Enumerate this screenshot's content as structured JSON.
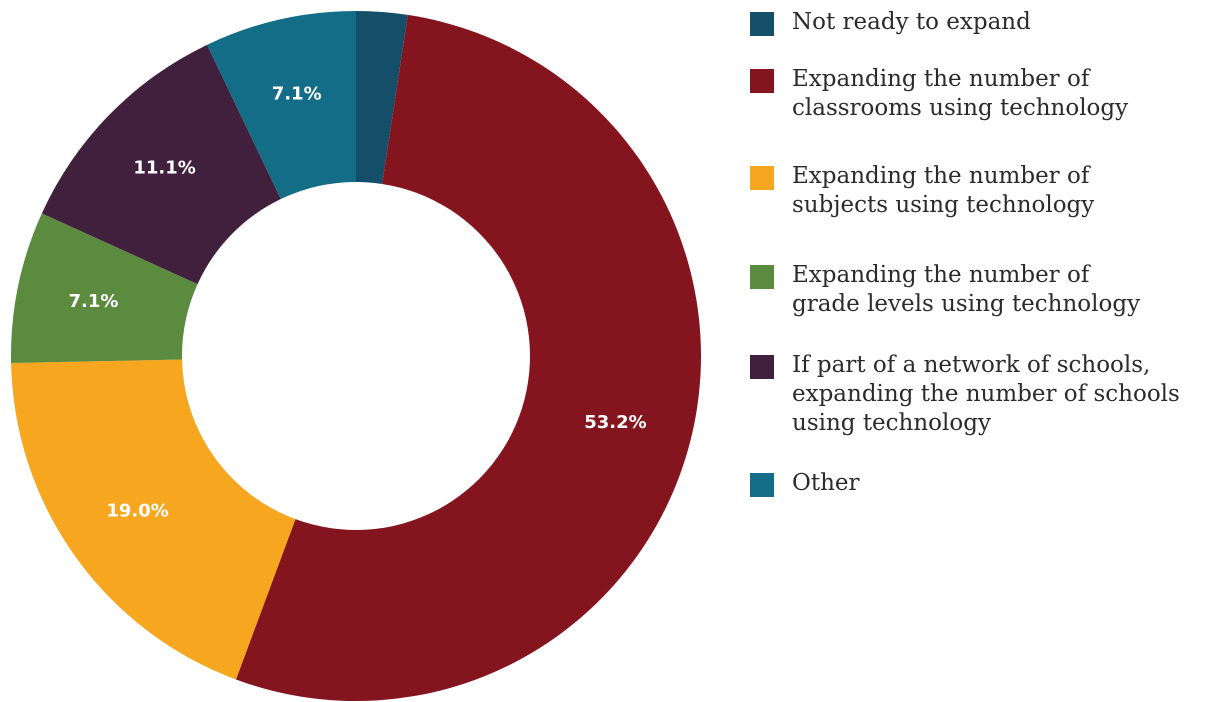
{
  "chart_data": {
    "type": "pie",
    "categories": [
      "Not ready to expand",
      "Expanding the number of\nclassrooms using technology",
      "Expanding the number of\nsubjects using technology",
      "Expanding the number of\ngrade levels using technology",
      "If part of a network of schools,\nexpanding the number of schools\nusing technology",
      "Other"
    ],
    "values": [
      2.4,
      53.2,
      19.0,
      7.1,
      11.1,
      7.1
    ],
    "data_labels": [
      "",
      "53.2%",
      "19.0%",
      "7.1%",
      "11.1%",
      "7.1%"
    ],
    "colors": [
      "#144e69",
      "#84151e",
      "#f6a61f",
      "#5a8b3e",
      "#41203d",
      "#136d86"
    ],
    "legend_position": "right",
    "donut": true
  }
}
